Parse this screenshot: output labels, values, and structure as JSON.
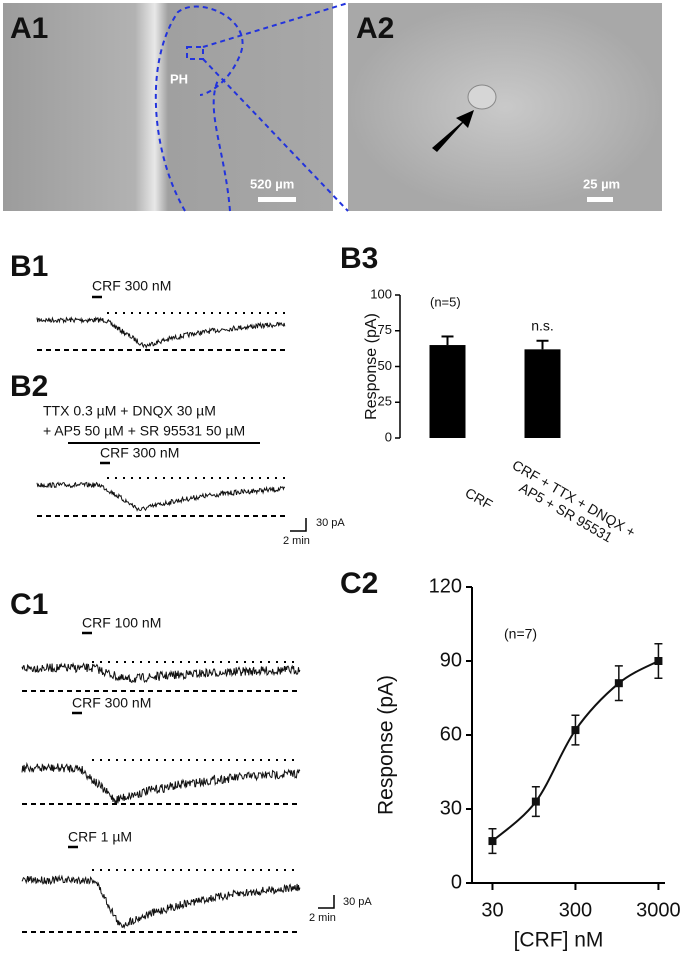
{
  "panels": {
    "A1": {
      "label": "A1",
      "region": "PH",
      "scale": "520 µm"
    },
    "A2": {
      "label": "A2",
      "scale": "25 µm"
    },
    "B1": {
      "label": "B1",
      "drug": "CRF 300 nM"
    },
    "B2": {
      "label": "B2",
      "bath_line1": "TTX 0.3 µM + DNQX 30 µM",
      "bath_line2": "+ AP5 50 µM + SR 95531 50 µM",
      "drug": "CRF 300 nM"
    },
    "B_scale": {
      "y": "30 pA",
      "x": "2 min"
    },
    "B3": {
      "label": "B3"
    },
    "C1": {
      "label": "C1",
      "drugs": [
        "CRF 100 nM",
        "CRF 300 nM",
        "CRF 1 µM"
      ]
    },
    "C_scale": {
      "y": "30 pA",
      "x": "2 min"
    },
    "C2": {
      "label": "C2"
    }
  },
  "chart_data": [
    {
      "type": "bar",
      "ylabel": "Response (pA)",
      "categories": [
        "CRF",
        "CRF + TTX + DNQX + AP5 + SR 95531"
      ],
      "values": [
        65,
        62
      ],
      "errors": [
        6,
        6
      ],
      "color": "#000000",
      "ylim": [
        0,
        100
      ],
      "yticks": [
        0,
        25,
        50,
        75,
        100
      ],
      "annotations": [
        "(n=5)",
        "n.s."
      ]
    },
    {
      "type": "line",
      "xlabel": "[CRF] nM",
      "ylabel": "Response (pA)",
      "x": [
        30,
        100,
        300,
        1000,
        3000
      ],
      "values": [
        17,
        33,
        62,
        81,
        90
      ],
      "errors": [
        5,
        6,
        6,
        7,
        7
      ],
      "color": "#111111",
      "xscale": "log",
      "xlim": [
        17,
        3600
      ],
      "xticks": [
        30,
        300,
        3000
      ],
      "ylim": [
        0,
        120
      ],
      "yticks": [
        0,
        30,
        60,
        90,
        120
      ],
      "annotations": [
        "(n=7)"
      ]
    }
  ]
}
